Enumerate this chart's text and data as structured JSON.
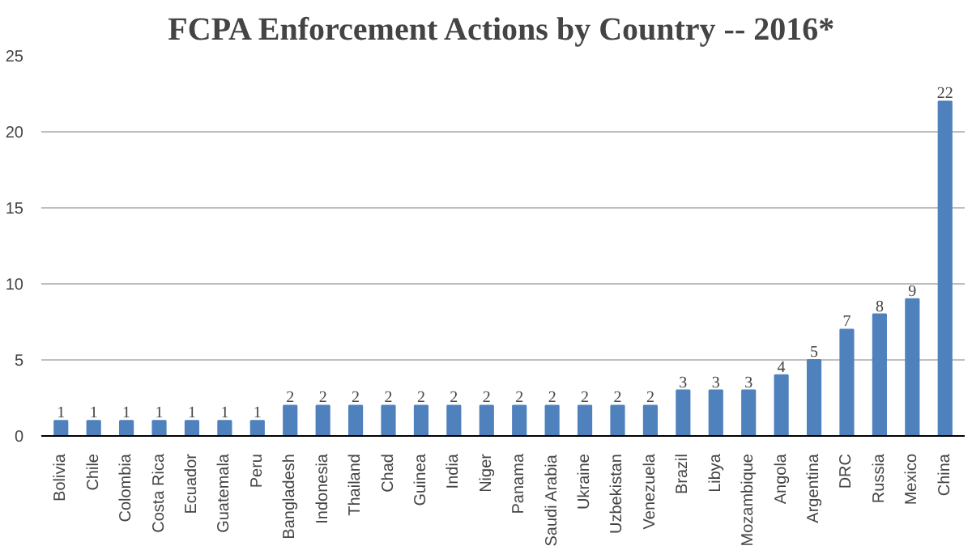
{
  "chart_data": {
    "type": "bar",
    "title": "FCPA Enforcement Actions by Country -- 2016*",
    "categories": [
      "Bolivia",
      "Chile",
      "Colombia",
      "Costa Rica",
      "Ecuador",
      "Guatemala",
      "Peru",
      "Bangladesh",
      "Indonesia",
      "Thailand",
      "Chad",
      "Guinea",
      "India",
      "Niger",
      "Panama",
      "Saudi Arabia",
      "Ukraine",
      "Uzbekistan",
      "Venezuela",
      "Brazil",
      "Libya",
      "Mozambique",
      "Angola",
      "Argentina",
      "DRC",
      "Russia",
      "Mexico",
      "China"
    ],
    "values": [
      1,
      1,
      1,
      1,
      1,
      1,
      1,
      2,
      2,
      2,
      2,
      2,
      2,
      2,
      2,
      2,
      2,
      2,
      2,
      3,
      3,
      3,
      4,
      5,
      7,
      8,
      9,
      22
    ],
    "color": "#4f81bd",
    "ylim": [
      0,
      25
    ],
    "yticks": [
      0,
      5,
      10,
      15,
      20,
      25
    ],
    "grid": "y",
    "data_labels": true
  }
}
